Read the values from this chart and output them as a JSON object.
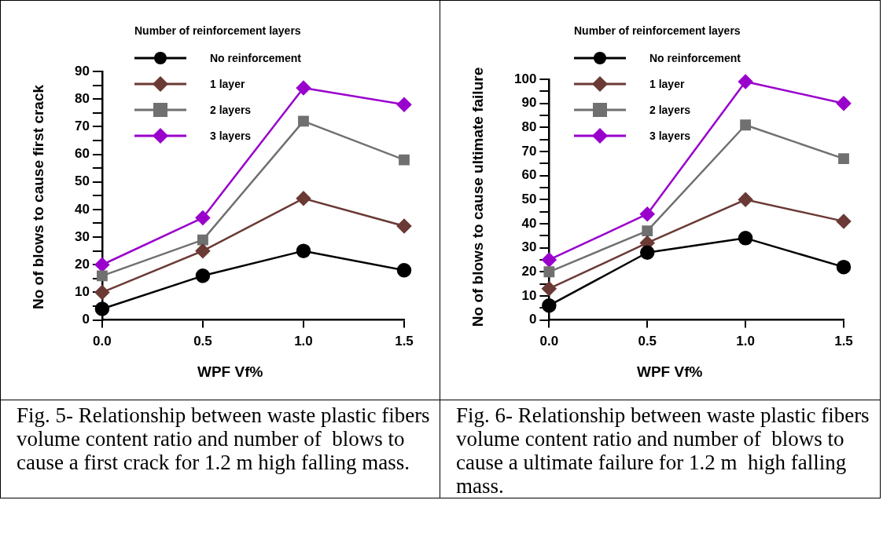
{
  "chart_data": [
    {
      "type": "line",
      "xlabel": "WPF Vf%",
      "ylabel": "No of blows to cause first crack",
      "legend_title": "Number of reinforcement layers",
      "legend": "top left",
      "grid": false,
      "x": [
        0,
        0.5,
        1,
        1.5
      ],
      "xlim": [
        0,
        1.5
      ],
      "xticks": [
        {
          "value": 0,
          "label": "0.0"
        },
        {
          "value": 0.5,
          "label": "0.5"
        },
        {
          "value": 1,
          "label": "1.0"
        },
        {
          "value": 1.5,
          "label": "1.5"
        }
      ],
      "ylim": [
        0,
        90
      ],
      "yticks": [
        0,
        {
          "value": 5,
          "label": null
        },
        10,
        {
          "value": 15,
          "label": null
        },
        20,
        {
          "value": 25,
          "label": null
        },
        30,
        {
          "value": 35,
          "label": null
        },
        40,
        {
          "value": 45,
          "label": null
        },
        50,
        {
          "value": 55,
          "label": null
        },
        60,
        {
          "value": 65,
          "label": null
        },
        70,
        {
          "value": 75,
          "label": null
        },
        80,
        {
          "value": 85,
          "label": null
        },
        90
      ],
      "series": [
        {
          "name": "No reinforcement",
          "color": "#000000",
          "marker": "circle",
          "values": [
            4,
            16,
            25,
            18
          ]
        },
        {
          "name": "1 layer",
          "color": "#6b3a35",
          "marker": "diamond",
          "values": [
            10,
            25,
            44,
            34
          ]
        },
        {
          "name": "2 layers",
          "color": "#707070",
          "marker": "square",
          "values": [
            16,
            29,
            72,
            58
          ]
        },
        {
          "name": "3 layers",
          "color": "#9900cc",
          "marker": "diamond",
          "values": [
            20,
            37,
            84,
            78
          ]
        }
      ],
      "annotations": [
        "Fig. 5- Relationship between waste plastic fibers volume content ratio and number of  blows to cause a first crack for 1.2 m high falling mass."
      ]
    },
    {
      "type": "line",
      "xlabel": "WPF Vf%",
      "ylabel": "No of blows to cause ultimate failure",
      "legend_title": "Number of reinforcement layers",
      "legend": "top left",
      "grid": false,
      "x": [
        0,
        0.5,
        1,
        1.5
      ],
      "xlim": [
        0,
        1.5
      ],
      "xticks": [
        {
          "value": 0,
          "label": "0.0"
        },
        {
          "value": 0.5,
          "label": "0.5"
        },
        {
          "value": 1,
          "label": "1.0"
        },
        {
          "value": 1.5,
          "label": "1.5"
        }
      ],
      "ylim": [
        0,
        100
      ],
      "yticks": [
        0,
        {
          "value": 5,
          "label": null
        },
        10,
        {
          "value": 15,
          "label": null
        },
        20,
        {
          "value": 25,
          "label": null
        },
        30,
        {
          "value": 35,
          "label": null
        },
        40,
        {
          "value": 45,
          "label": null
        },
        50,
        {
          "value": 55,
          "label": null
        },
        60,
        {
          "value": 65,
          "label": null
        },
        70,
        {
          "value": 75,
          "label": null
        },
        80,
        {
          "value": 85,
          "label": null
        },
        90,
        {
          "value": 95,
          "label": null
        },
        100
      ],
      "series": [
        {
          "name": "No reinforcement",
          "color": "#000000",
          "marker": "circle",
          "values": [
            6,
            28,
            34,
            22
          ]
        },
        {
          "name": "1 layer",
          "color": "#6b3a35",
          "marker": "diamond",
          "values": [
            13,
            32,
            50,
            41
          ]
        },
        {
          "name": "2 layers",
          "color": "#707070",
          "marker": "square",
          "values": [
            20,
            37,
            81,
            67
          ]
        },
        {
          "name": "3 layers",
          "color": "#9900cc",
          "marker": "diamond",
          "values": [
            25,
            44,
            99,
            90
          ]
        }
      ],
      "annotations": [
        "Fig. 6- Relationship between waste plastic fibers volume content ratio and number of  blows to cause a ultimate failure for 1.2 m  high falling mass."
      ]
    }
  ]
}
